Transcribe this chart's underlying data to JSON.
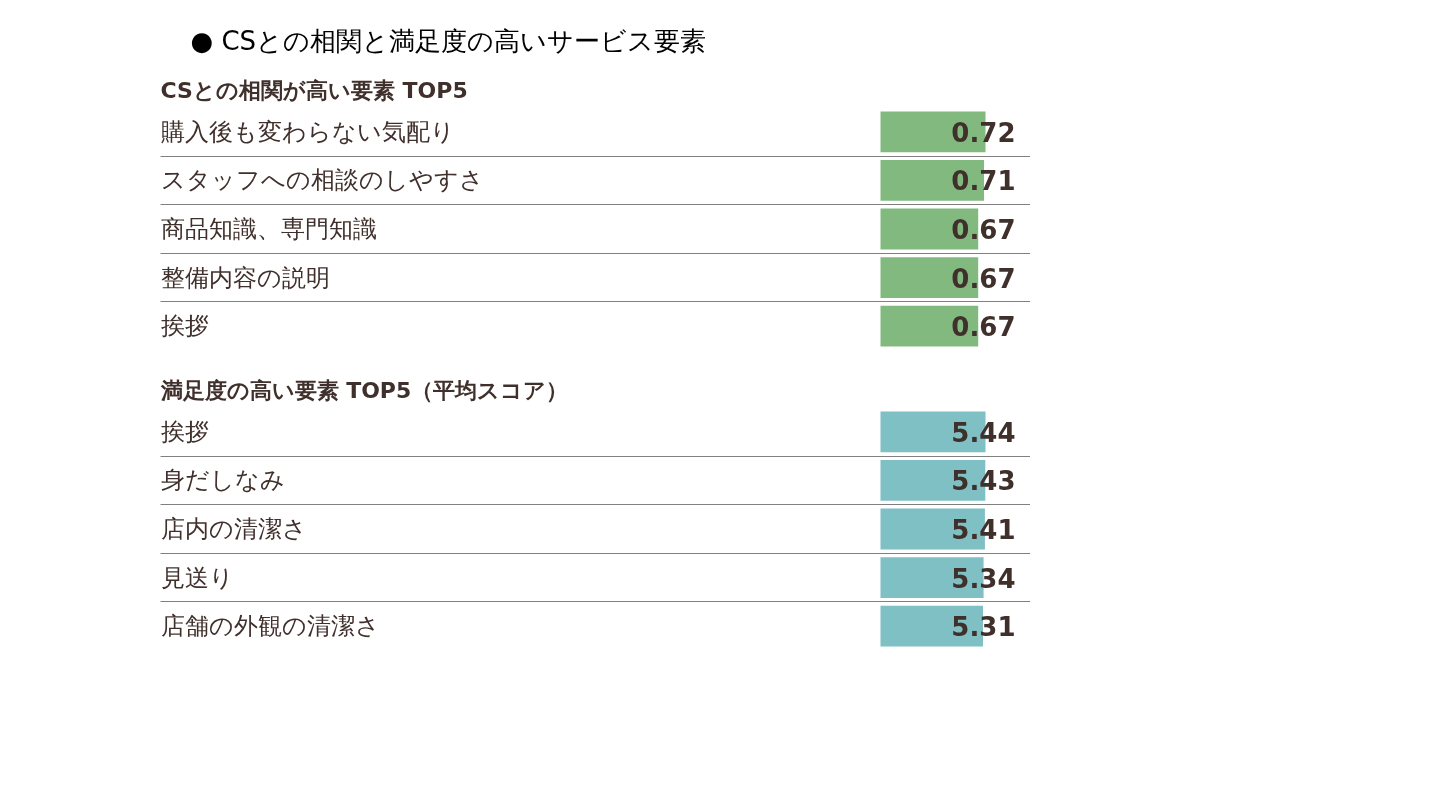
{
  "chart_data": [
    {
      "type": "other",
      "title": "● CSとの相関と満足度の高いサービス要素"
    },
    {
      "type": "bar",
      "orientation": "horizontal",
      "title": "CSとの相関が高い要素 TOP5",
      "categories": [
        "購入後も変わらない気配り",
        "スタッフへの相談のしやすさ",
        "商品知識、専門知識",
        "整備内容の説明",
        "挨拶"
      ],
      "values": [
        0.72,
        0.71,
        0.67,
        0.67,
        0.67
      ],
      "color": "#82b97f",
      "data_labels": true,
      "grid": "y"
    },
    {
      "type": "bar",
      "orientation": "horizontal",
      "title": "満足度の高い要素 TOP5（平均スコア）",
      "categories": [
        "挨拶",
        "身だしなみ",
        "店内の清潔さ",
        "見送り",
        "店舗の外観の清潔さ"
      ],
      "values": [
        5.44,
        5.43,
        5.41,
        5.34,
        5.31
      ],
      "color": "#7fc0c4",
      "data_labels": true,
      "grid": "y"
    }
  ]
}
